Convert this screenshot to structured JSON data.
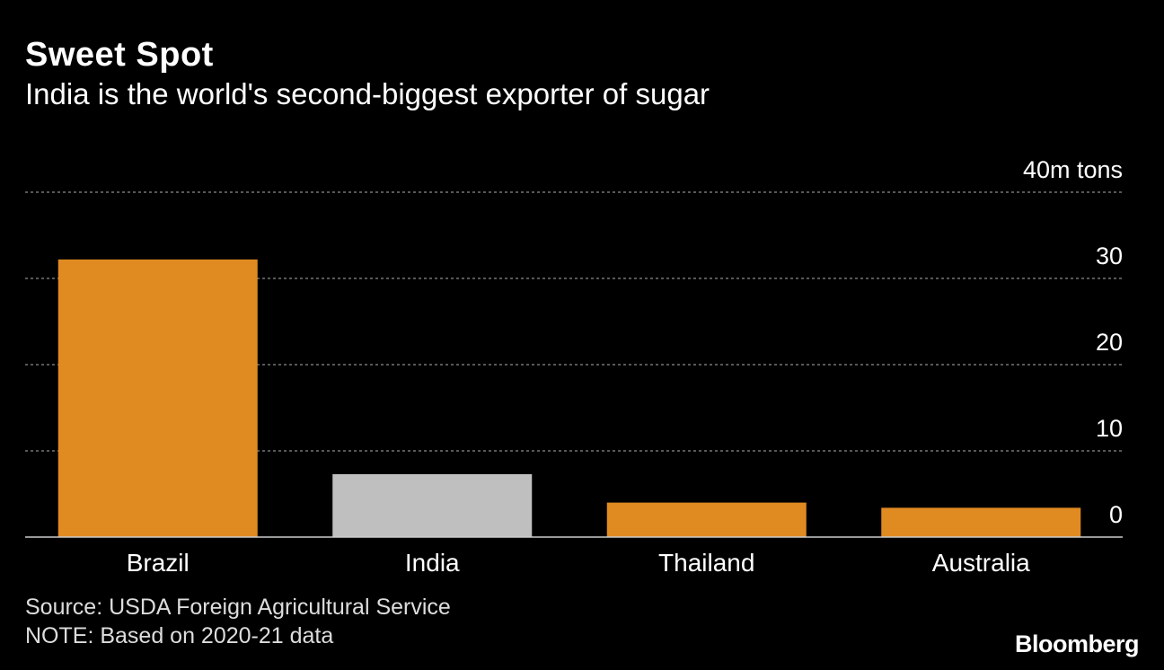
{
  "header": {
    "title": "Sweet Spot",
    "subtitle": "India is the world's second-biggest exporter of sugar"
  },
  "chart_data": {
    "type": "bar",
    "title": "Sweet Spot",
    "subtitle": "India is the world's second-biggest exporter of sugar",
    "xlabel": "",
    "ylabel": "",
    "unit_label": "m tons",
    "categories": [
      "Brazil",
      "India",
      "Thailand",
      "Australia"
    ],
    "values": [
      32.2,
      7.3,
      4.0,
      3.4
    ],
    "highlight": "India",
    "ylim": [
      0,
      40
    ],
    "yticks": [
      0,
      10,
      20,
      30,
      40
    ],
    "ytick_labels": [
      "0",
      "10",
      "20",
      "30",
      "40"
    ],
    "grid": true,
    "bar_color": "#e08a22",
    "highlight_color": "#bfbfbf",
    "grid_color": "#8c8c8c",
    "axis_color": "#cccccc"
  },
  "footer": {
    "source": "Source: USDA Foreign Agricultural Service",
    "note": "NOTE: Based on 2020-21 data",
    "brand": "Bloomberg"
  }
}
